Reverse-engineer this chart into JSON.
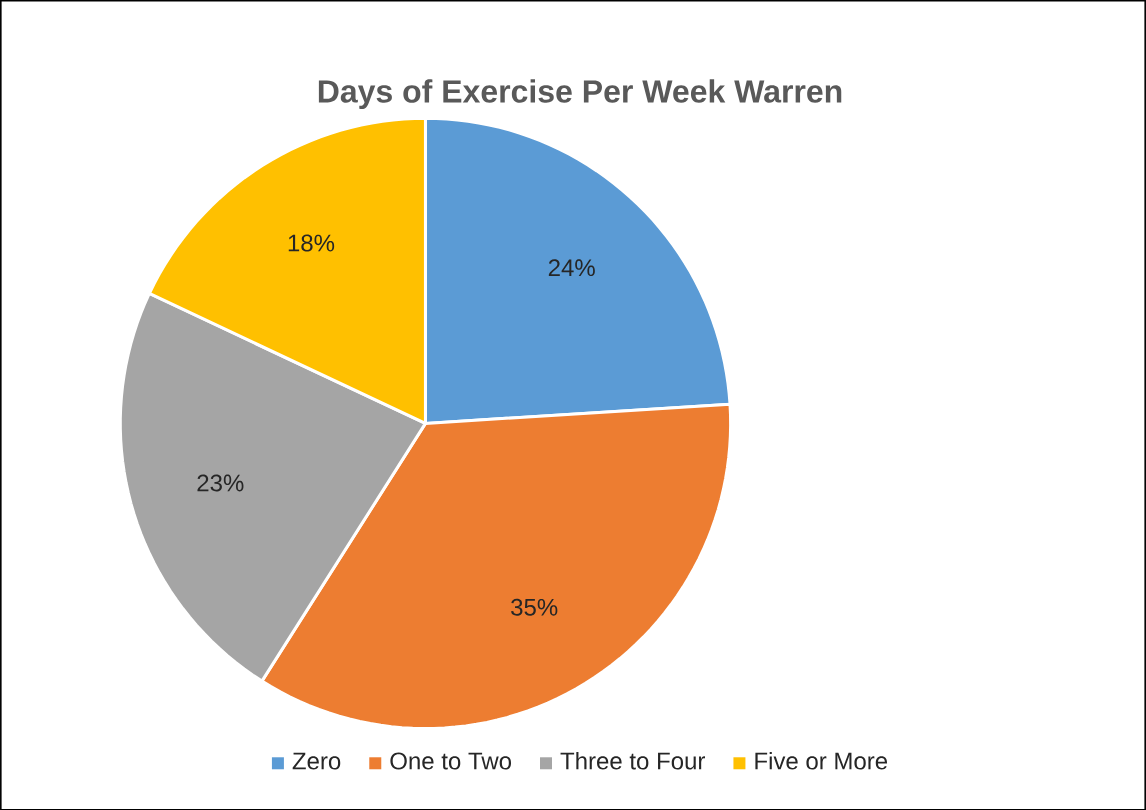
{
  "chart_data": {
    "type": "pie",
    "title": "Days of Exercise Per Week Warren",
    "categories": [
      "Zero",
      "One to Two",
      "Three to Four",
      "Five or More"
    ],
    "values": [
      24,
      35,
      23,
      18
    ],
    "colors": [
      "#5b9bd5",
      "#ed7d31",
      "#a5a5a5",
      "#ffc000"
    ],
    "value_labels": [
      "24%",
      "35%",
      "23%",
      "18%"
    ],
    "legend": "bottom"
  }
}
